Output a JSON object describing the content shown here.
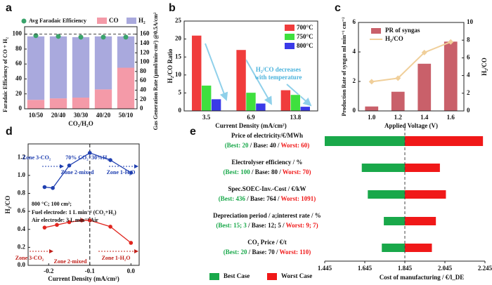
{
  "chart_data": [
    {
      "type": "stacked-bar",
      "label": "a",
      "ylabel": "Faradaic Efficiency of CO + H₂",
      "y2label": "Gas Generation Rate (μmol/min·cm²) @0.5A/cm²",
      "xlabel": "CO₂/H₂O",
      "categories": [
        "10/50",
        "20/40",
        "30/30",
        "40/20",
        "50/10"
      ],
      "series": [
        {
          "name": "CO",
          "color": "#f49aa8",
          "values": [
            12,
            14,
            15,
            26,
            55
          ]
        },
        {
          "name": "H₂",
          "color": "#a9a9dd",
          "values": [
            85,
            83,
            81,
            71,
            42
          ]
        }
      ],
      "points": {
        "name": "Avg Faradaic Efficiency",
        "color": "#3aa36b",
        "values": [
          98,
          97,
          96,
          96,
          96
        ]
      },
      "hline": 100,
      "ylim": [
        0,
        110
      ],
      "yticks": [
        0,
        20,
        40,
        60,
        80,
        100
      ],
      "y2lim": [
        0,
        176
      ],
      "y2ticks": [
        0,
        20,
        40,
        60,
        80,
        100,
        120,
        140,
        160
      ]
    },
    {
      "type": "bar",
      "label": "b",
      "ylabel": "H₂/CO Ratio",
      "xlabel": "Current Density (mA/cm²)",
      "annotation": [
        "H₂/CO decreases",
        "with temperature"
      ],
      "categories": [
        "3.5",
        "6.9",
        "13.8"
      ],
      "series": [
        {
          "name": "700°C",
          "color": "#f03c3c",
          "values": [
            21,
            17,
            5.8
          ]
        },
        {
          "name": "750°C",
          "color": "#3ee03e",
          "values": [
            7.1,
            5.1,
            4.5
          ]
        },
        {
          "name": "800°C",
          "color": "#3a3ae8",
          "values": [
            3.3,
            2.1,
            1.2
          ]
        }
      ],
      "ylim": [
        0,
        25
      ],
      "yticks": [
        0,
        5,
        10,
        15,
        20,
        25
      ]
    },
    {
      "type": "bar-line",
      "label": "c",
      "ylabel": "Production  Rate of syngas ml min⁻¹ cm⁻²",
      "y2label": "H₂/CO",
      "xlabel": "Applied Voltage (V)",
      "categories": [
        "1.0",
        "1.2",
        "1.4",
        "1.6"
      ],
      "series": [
        {
          "name": "PR of syngas",
          "color": "#c9606a",
          "values": [
            0.3,
            1.3,
            3.2,
            4.7
          ]
        },
        {
          "name": "H₂/CO",
          "color": "#f0cf9a",
          "axis": "y2",
          "values": [
            3.3,
            3.7,
            6.6,
            7.8
          ]
        }
      ],
      "ylim": [
        0,
        6
      ],
      "yticks": [
        0,
        2,
        4,
        6
      ],
      "y2lim": [
        0,
        10
      ],
      "y2ticks": [
        0,
        2,
        4,
        6,
        8,
        10
      ]
    },
    {
      "type": "line",
      "label": "d",
      "ylabel": "H₂/CO",
      "xlabel": "Current Density (mA/cm²)",
      "annotations": [
        "Zone 3-CO₂",
        "70% CO₂+30%H₂",
        "Zone 2-mixed",
        "Zone 1-H₂O",
        "800 °C;  100 cm²;",
        "Fuel electrode: 1 L min⁻¹ (CO₂+H₂)",
        "Air electrode: 3 L min⁻¹ Air",
        "Zone 3-CO₂",
        "Zone 2-mixed",
        "Zone 1-H₂O"
      ],
      "series": [
        {
          "color": "#1f3fb0",
          "x": [
            -0.21,
            -0.19,
            -0.15,
            -0.1,
            -0.05,
            0.0
          ],
          "values": [
            0.87,
            0.86,
            1.11,
            1.25,
            1.17,
            1.03
          ]
        },
        {
          "color": "#e0251e",
          "x": [
            -0.21,
            -0.18,
            -0.15,
            -0.12,
            -0.1,
            -0.05,
            0.0
          ],
          "values": [
            0.42,
            0.45,
            0.48,
            0.5,
            0.5,
            0.43,
            0.25
          ]
        }
      ],
      "vline": -0.1,
      "xlim": [
        -0.25,
        0.02
      ],
      "xticks": [
        -0.2,
        -0.1,
        {
          "value": 0.0,
          "label": "0.0"
        }
      ],
      "ylim": [
        0.0,
        1.35
      ],
      "yticks": [
        {
          "value": 0.0,
          "label": "0.0"
        },
        0.2,
        0.4,
        0.6,
        0.8,
        {
          "value": 1.0,
          "label": "1.0"
        },
        1.2
      ]
    },
    {
      "type": "tornado",
      "label": "e",
      "xlabel": "Cost of manufacturing / €/l_DE",
      "legend": [
        {
          "name": "Best Case",
          "color": "#19a84a"
        },
        {
          "name": "Worst Case",
          "color": "#f01818"
        }
      ],
      "base": 1.845,
      "items": [
        {
          "name": "Price of electricity/€/MWh",
          "best_label": "(Best: 20",
          "base_label": "/ Base: 40 /",
          "worst_label": "Worst: 60)",
          "best": 1.445,
          "worst": 2.235
        },
        {
          "name": "Electrolyser efficiency / %",
          "best_label": "(Best: 100",
          "base_label": "/ Base: 80 /",
          "worst_label": "Worst: 70)",
          "best": 1.63,
          "worst": 2.02
        },
        {
          "name": "Spec.SOEC-Inv.-Cost / €/kW",
          "best_label": "(Best: 436",
          "base_label": "/ Base: 764 /",
          "worst_label": "Worst: 1091)",
          "best": 1.66,
          "worst": 2.05
        },
        {
          "name": "Depreciation period / a;interest rate / %",
          "best_label": "(Best: 15; 3",
          "base_label": "/ Base: 12; 5 /",
          "worst_label": "Worst: 9; 7)",
          "best": 1.74,
          "worst": 2.0
        },
        {
          "name": "CO₂ Price / €/t",
          "best_label": "(Best: 20",
          "base_label": "/ Base: 70 /",
          "worst_label": "Worst: 110)",
          "best": 1.73,
          "worst": 1.98
        }
      ],
      "xlim": [
        1.445,
        2.245
      ],
      "xticks": [
        1.445,
        1.645,
        1.845,
        2.045,
        2.245
      ]
    }
  ]
}
